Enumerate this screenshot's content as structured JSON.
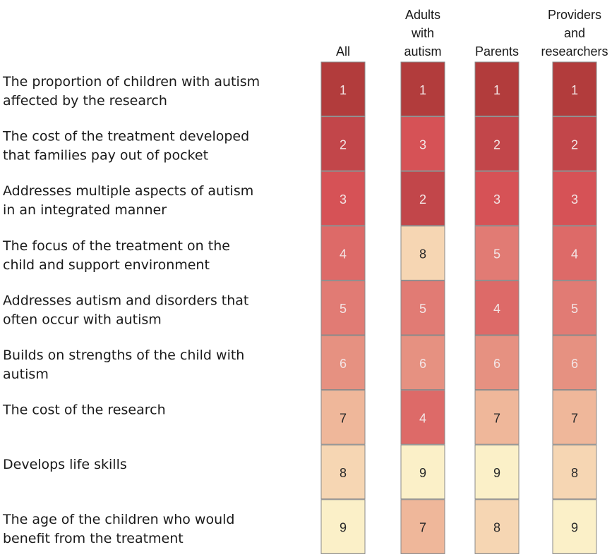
{
  "chart_data": {
    "type": "heatmap",
    "columns": [
      [
        "All"
      ],
      [
        "Adults",
        "with",
        "autism"
      ],
      [
        "Parents"
      ],
      [
        "Providers",
        "and",
        "researchers"
      ]
    ],
    "rows": [
      [
        "The proportion of children with autism",
        "affected by the research"
      ],
      [
        "The cost of the treatment developed",
        "that families pay out of pocket"
      ],
      [
        "Addresses multiple aspects of autism",
        "in an integrated manner"
      ],
      [
        "The focus of the treatment on the",
        "child and support environment"
      ],
      [
        "Addresses autism and disorders that",
        "often occur with autism"
      ],
      [
        "Builds on strengths of the child with",
        "autism"
      ],
      [
        "The cost of the research"
      ],
      [
        "Develops life skills"
      ],
      [
        "The age of the children who would",
        "benefit from the treatment"
      ]
    ],
    "values": [
      [
        1,
        1,
        1,
        1
      ],
      [
        2,
        3,
        2,
        2
      ],
      [
        3,
        2,
        3,
        3
      ],
      [
        4,
        8,
        5,
        4
      ],
      [
        5,
        5,
        4,
        5
      ],
      [
        6,
        6,
        6,
        6
      ],
      [
        7,
        4,
        7,
        7
      ],
      [
        8,
        9,
        9,
        8
      ],
      [
        9,
        7,
        8,
        9
      ]
    ],
    "rank_colors": {
      "1": "#b23c3c",
      "2": "#c2464a",
      "3": "#d65256",
      "4": "#dd6a68",
      "5": "#e17b74",
      "6": "#e69181",
      "7": "#efb79a",
      "8": "#f6d6b3",
      "9": "#fbf0c8"
    },
    "text_colors": {
      "dark": "#f3e4e4",
      "light": "#2a2a2a"
    }
  }
}
